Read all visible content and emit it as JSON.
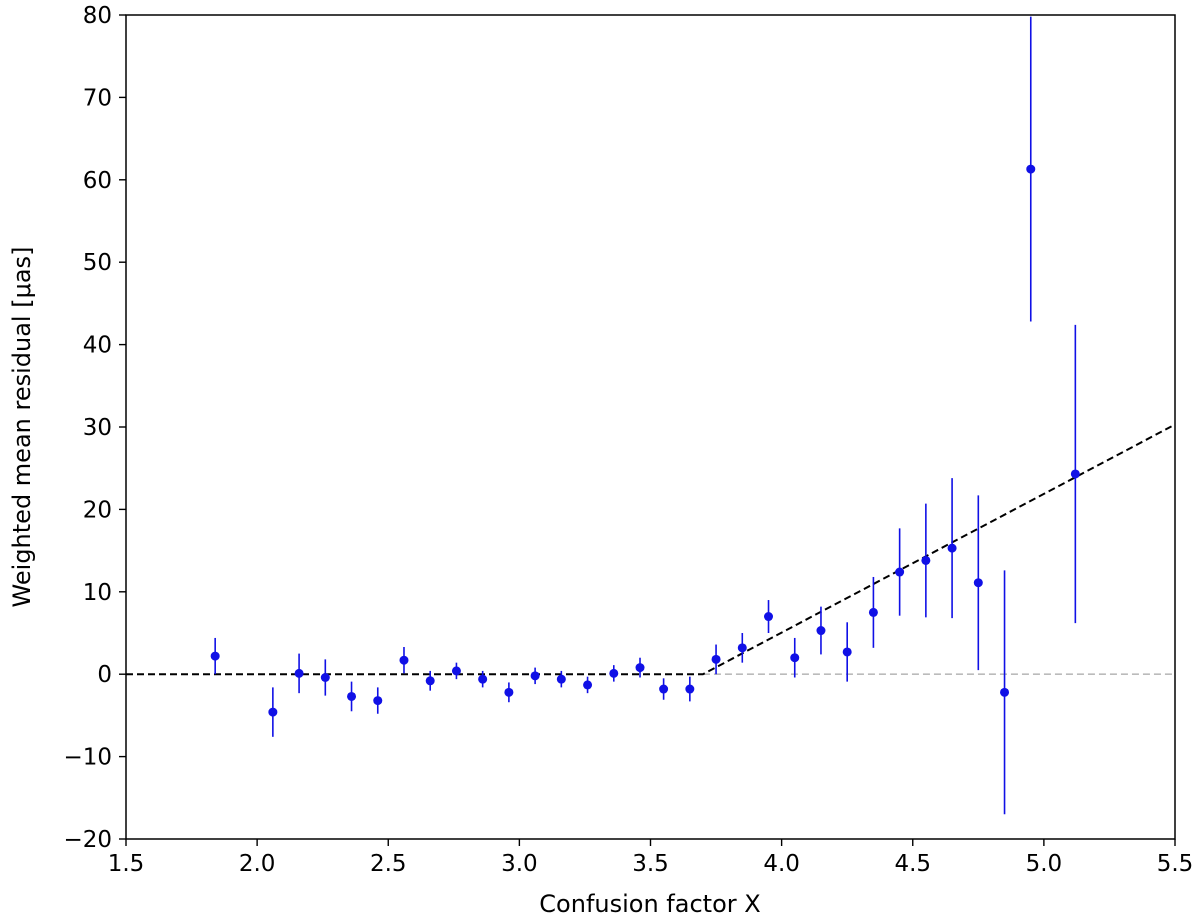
{
  "chart_data": {
    "type": "scatter",
    "title": "",
    "xlabel": "Confusion factor X",
    "ylabel": "Weighted mean residual [μas]",
    "xlim": [
      1.5,
      5.5
    ],
    "ylim": [
      -20,
      80
    ],
    "xticks": [
      1.5,
      2.0,
      2.5,
      3.0,
      3.5,
      4.0,
      4.5,
      5.0,
      5.5
    ],
    "xtick_labels": [
      "1.5",
      "2.0",
      "2.5",
      "3.0",
      "3.5",
      "4.0",
      "4.5",
      "5.0",
      "5.5"
    ],
    "yticks": [
      -20,
      -10,
      0,
      10,
      20,
      30,
      40,
      50,
      60,
      70,
      80
    ],
    "ytick_labels": [
      "−20",
      "−10",
      "0",
      "10",
      "20",
      "30",
      "40",
      "50",
      "60",
      "70",
      "80"
    ],
    "grid": false,
    "legend": "none",
    "series": [
      {
        "marker_color": "#1010e6",
        "points": [
          {
            "x": 1.84,
            "y": 2.2,
            "err": 2.2
          },
          {
            "x": 2.06,
            "y": -4.6,
            "err": 3.0
          },
          {
            "x": 2.16,
            "y": 0.1,
            "err": 2.4
          },
          {
            "x": 2.26,
            "y": -0.4,
            "err": 2.2
          },
          {
            "x": 2.36,
            "y": -2.7,
            "err": 1.8
          },
          {
            "x": 2.46,
            "y": -3.2,
            "err": 1.6
          },
          {
            "x": 2.56,
            "y": 1.7,
            "err": 1.6
          },
          {
            "x": 2.66,
            "y": -0.8,
            "err": 1.2
          },
          {
            "x": 2.76,
            "y": 0.4,
            "err": 1.0
          },
          {
            "x": 2.86,
            "y": -0.6,
            "err": 1.0
          },
          {
            "x": 2.96,
            "y": -2.2,
            "err": 1.2
          },
          {
            "x": 3.06,
            "y": -0.2,
            "err": 1.0
          },
          {
            "x": 3.16,
            "y": -0.6,
            "err": 1.0
          },
          {
            "x": 3.26,
            "y": -1.3,
            "err": 1.0
          },
          {
            "x": 3.36,
            "y": 0.1,
            "err": 1.0
          },
          {
            "x": 3.46,
            "y": 0.8,
            "err": 1.2
          },
          {
            "x": 3.55,
            "y": -1.8,
            "err": 1.3
          },
          {
            "x": 3.65,
            "y": -1.8,
            "err": 1.5
          },
          {
            "x": 3.75,
            "y": 1.8,
            "err": 1.8
          },
          {
            "x": 3.85,
            "y": 3.2,
            "err": 1.8
          },
          {
            "x": 3.95,
            "y": 7.0,
            "err": 2.0
          },
          {
            "x": 4.05,
            "y": 2.0,
            "err": 2.4
          },
          {
            "x": 4.15,
            "y": 5.3,
            "err": 2.9
          },
          {
            "x": 4.25,
            "y": 2.7,
            "err": 3.6
          },
          {
            "x": 4.35,
            "y": 7.5,
            "err": 4.3
          },
          {
            "x": 4.45,
            "y": 12.4,
            "err": 5.3
          },
          {
            "x": 4.55,
            "y": 13.8,
            "err": 6.9
          },
          {
            "x": 4.65,
            "y": 15.3,
            "err": 8.5
          },
          {
            "x": 4.75,
            "y": 11.1,
            "err": 10.6
          },
          {
            "x": 4.85,
            "y": -2.2,
            "err": 14.8
          },
          {
            "x": 4.95,
            "y": 61.3,
            "err": 18.5
          },
          {
            "x": 5.12,
            "y": 24.3,
            "err": 18.1
          }
        ]
      }
    ],
    "fit_line": {
      "color": "#000000",
      "style": "dashed",
      "points": [
        {
          "x": 1.5,
          "y": 0
        },
        {
          "x": 3.7,
          "y": 0
        },
        {
          "x": 5.5,
          "y": 30.3
        }
      ]
    },
    "reference_line": {
      "color": "#bbbbbb",
      "style": "dashed",
      "y": 0,
      "x_from": 3.7,
      "x_to": 5.5
    }
  }
}
